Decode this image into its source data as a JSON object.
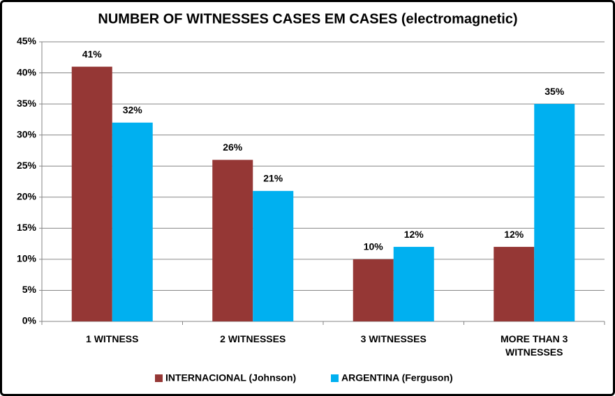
{
  "chart_data": {
    "type": "bar",
    "title": "NUMBER OF WITNESSES CASES EM CASES (electromagnetic)",
    "categories": [
      "1 WITNESS",
      "2 WITNESSES",
      "3 WITNESSES",
      "MORE THAN 3 WITNESSES"
    ],
    "series": [
      {
        "name": "INTERNACIONAL (Johnson)",
        "color": "#953735",
        "values": [
          41,
          26,
          10,
          12
        ],
        "value_labels": [
          "41%",
          "26%",
          "10%",
          "12%"
        ]
      },
      {
        "name": "ARGENTINA (Ferguson)",
        "color": "#00b0f0",
        "values": [
          32,
          21,
          12,
          35
        ],
        "value_labels": [
          "32%",
          "21%",
          "12%",
          "35%"
        ]
      }
    ],
    "ylim": [
      0,
      45
    ],
    "yticks": [
      {
        "value": 0,
        "label": "0%"
      },
      {
        "value": 5,
        "label": "5%"
      },
      {
        "value": 10,
        "label": "10%"
      },
      {
        "value": 15,
        "label": "15%"
      },
      {
        "value": 20,
        "label": "20%"
      },
      {
        "value": 25,
        "label": "25%"
      },
      {
        "value": 30,
        "label": "30%"
      },
      {
        "value": 35,
        "label": "35%"
      },
      {
        "value": 40,
        "label": "40%"
      },
      {
        "value": 45,
        "label": "45%"
      }
    ],
    "grid": true,
    "legend": "bottom"
  }
}
